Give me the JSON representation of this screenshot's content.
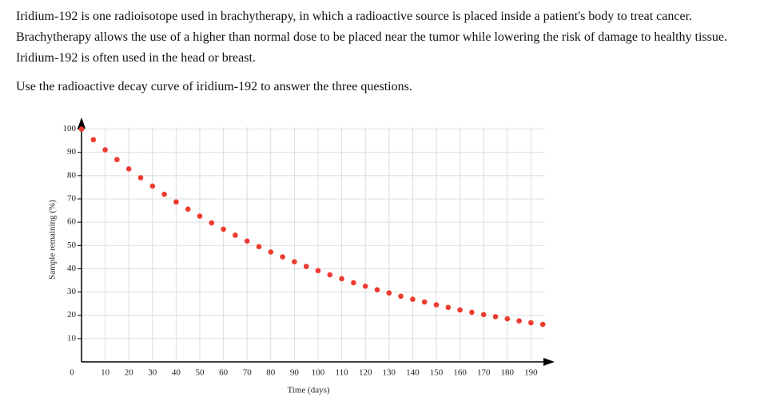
{
  "paragraphs": [
    "Iridium-192 is one radioisotope used in brachytherapy, in which a radioactive source is placed inside a patient's body to treat cancer. Brachytherapy allows the use of a higher than normal dose to be placed near the tumor while lowering the risk of damage to healthy tissue. Iridium-192 is often used in the head or breast.",
    "Use the radioactive decay curve of iridium-192 to answer the three questions."
  ],
  "chart_data": {
    "type": "scatter",
    "xlabel": "Time (days)",
    "ylabel": "Sample remaining (%)",
    "x": [
      0,
      5,
      10,
      15,
      20,
      25,
      30,
      35,
      40,
      45,
      50,
      55,
      60,
      65,
      70,
      75,
      80,
      85,
      90,
      95,
      100,
      105,
      110,
      115,
      120,
      125,
      130,
      135,
      140,
      145,
      150,
      155,
      160,
      165,
      170,
      175,
      180,
      185,
      190,
      195
    ],
    "values": [
      100,
      95.4,
      91.1,
      86.9,
      82.9,
      79.1,
      75.5,
      72.0,
      68.7,
      65.6,
      62.6,
      59.7,
      57.0,
      54.4,
      51.9,
      49.5,
      47.2,
      45.1,
      43.0,
      41.0,
      39.2,
      37.4,
      35.7,
      34.0,
      32.5,
      31.0,
      29.6,
      28.2,
      26.9,
      25.7,
      24.5,
      23.4,
      22.3,
      21.3,
      20.3,
      19.4,
      18.5,
      17.6,
      16.8,
      16.1
    ],
    "color": "#ee3b2f",
    "xlim": [
      0,
      200
    ],
    "ylim": [
      0,
      105
    ],
    "xticks": [
      0,
      10,
      20,
      30,
      40,
      50,
      60,
      70,
      80,
      90,
      100,
      110,
      120,
      130,
      140,
      150,
      160,
      170,
      180,
      190
    ],
    "yticks": [
      10,
      20,
      30,
      40,
      50,
      60,
      70,
      80,
      90,
      100
    ],
    "grid": true
  }
}
